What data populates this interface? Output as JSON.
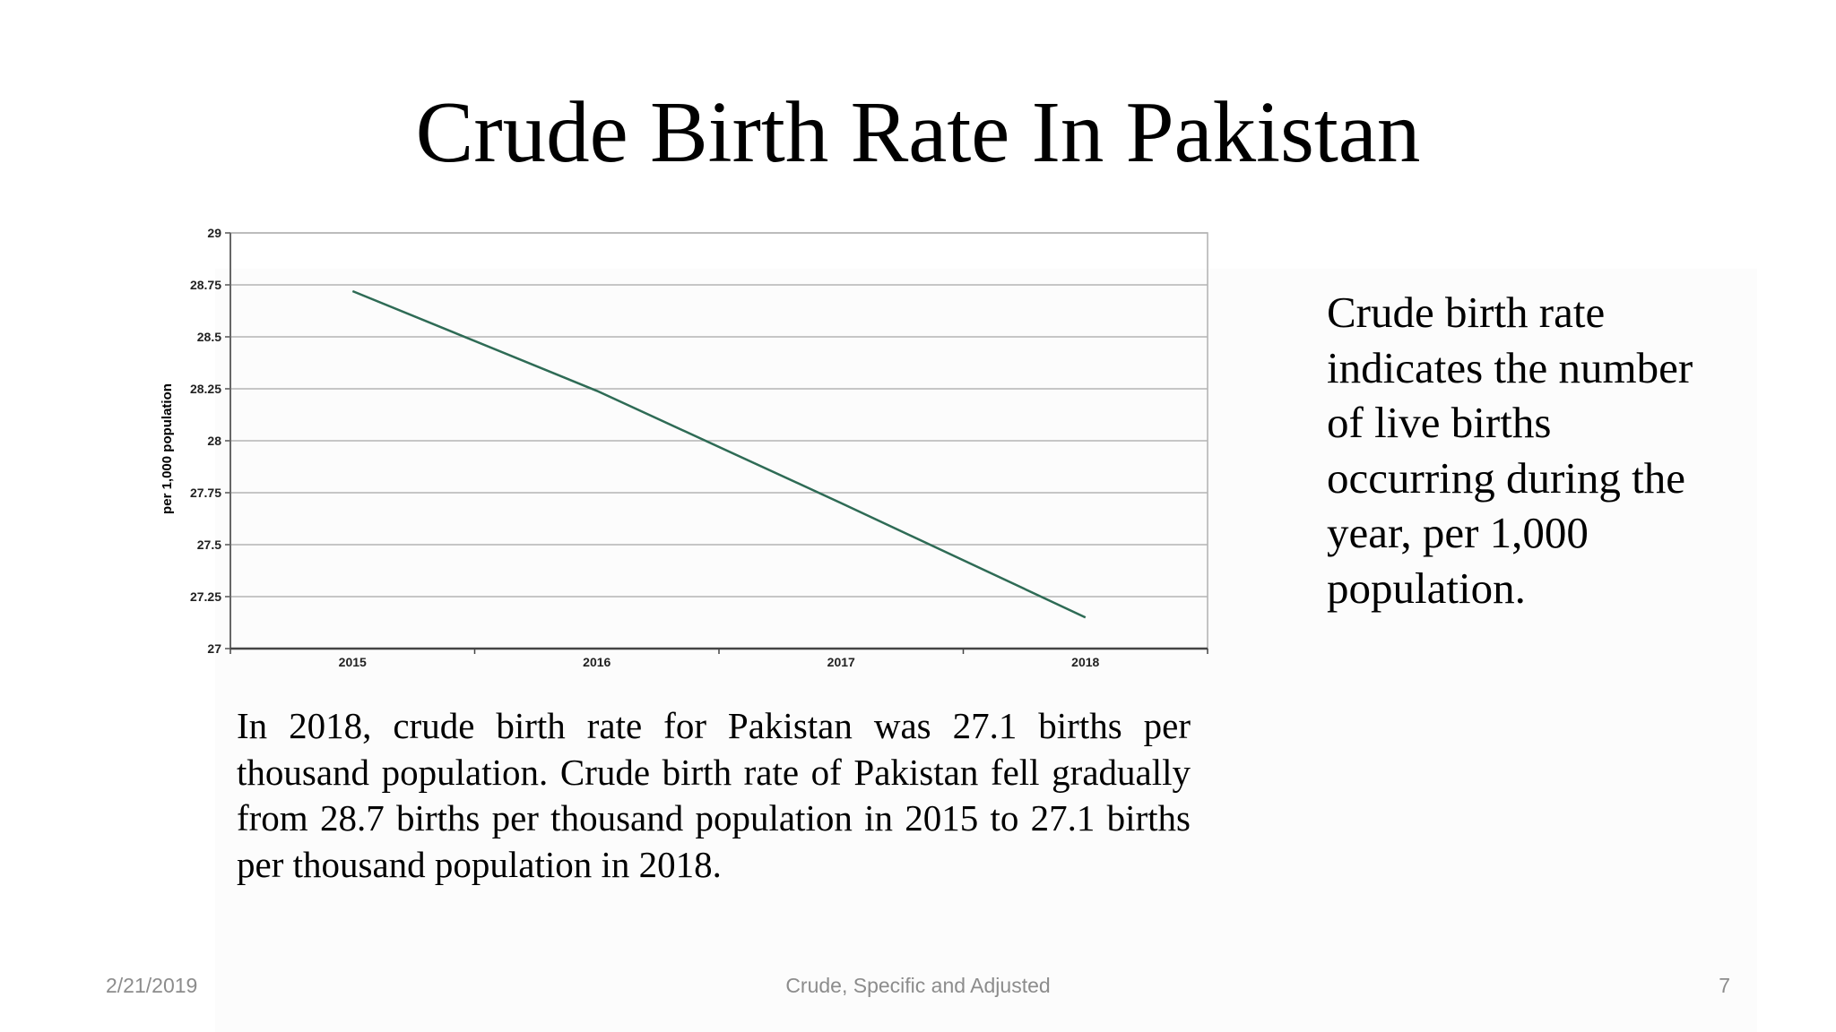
{
  "slide": {
    "title": "Crude  Birth Rate In Pakistan",
    "side_text": "Crude birth rate indicates the number of live births occurring during the year, per 1,000 population.",
    "paragraph": "In 2018, crude birth rate for Pakistan was 27.1 births per thousand population. Crude birth rate of Pakistan fell gradually from 28.7 births per thousand population in 2015 to 27.1 births per thousand population in 2018."
  },
  "footer": {
    "date": "2/21/2019",
    "center": "Crude, Specific and Adjusted",
    "page": "7"
  },
  "chart_data": {
    "type": "line",
    "title": "",
    "xlabel": "",
    "ylabel": "per 1,000 population",
    "categories": [
      "2015",
      "2016",
      "2017",
      "2018"
    ],
    "series": [
      {
        "values": [
          28.72,
          28.24,
          27.7,
          27.15
        ],
        "color": "#2e6b55"
      }
    ],
    "ylim": [
      27,
      29
    ],
    "yticks": [
      "29",
      "28.75",
      "28.5",
      "28.25",
      "28",
      "27.75",
      "27.5",
      "27.25",
      "27"
    ],
    "grid": true,
    "legend": "none"
  }
}
